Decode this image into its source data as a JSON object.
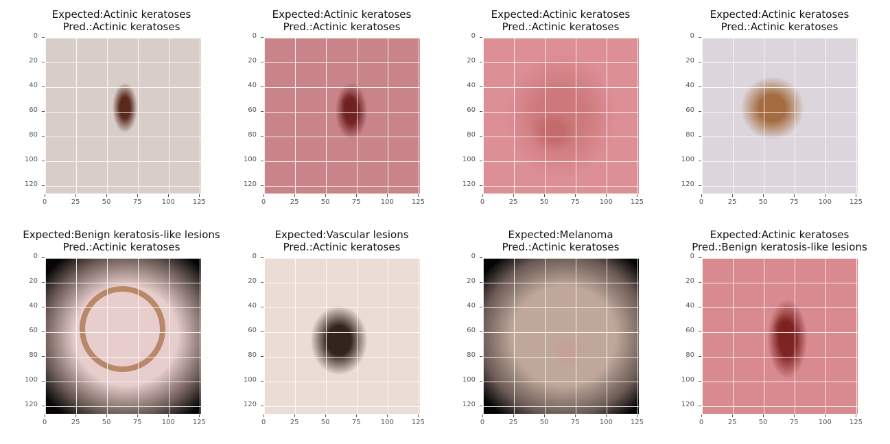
{
  "figure": {
    "panels": [
      {
        "expected_line": "Expected:Actinic keratoses",
        "pred_line": "Pred.:Actinic keratoses",
        "skin": "#d9cdc8",
        "lesion": "#5a2a1c",
        "variant": "a"
      },
      {
        "expected_line": "Expected:Actinic keratoses",
        "pred_line": "Pred.:Actinic keratoses",
        "skin": "#c9848a",
        "lesion": "#6e1e1c",
        "variant": "b"
      },
      {
        "expected_line": "Expected:Actinic keratoses",
        "pred_line": "Pred.:Actinic keratoses",
        "skin": "#dd8f96",
        "lesion": "#b0504a",
        "variant": "c"
      },
      {
        "expected_line": "Expected:Actinic keratoses",
        "pred_line": "Pred.:Actinic keratoses",
        "skin": "#ddd5dc",
        "lesion": "#9a5a26",
        "variant": "d"
      },
      {
        "expected_line": "Expected:Benign keratosis-like lesions",
        "pred_line": "Pred.:Actinic keratoses",
        "skin": "#e7cdcb",
        "lesion": "#9b5a26",
        "variant": "e"
      },
      {
        "expected_line": "Expected:Vascular lesions",
        "pred_line": "Pred.:Actinic keratoses",
        "skin": "#ecdcd6",
        "lesion": "#2a1a14",
        "variant": "f"
      },
      {
        "expected_line": "Expected:Melanoma",
        "pred_line": "Pred.:Actinic keratoses",
        "skin": "#bfa89a",
        "lesion": "#c99a96",
        "variant": "g"
      },
      {
        "expected_line": "Expected:Actinic keratoses",
        "pred_line": "Pred.:Benign keratosis-like lesions",
        "skin": "#d98a8e",
        "lesion": "#7a1e1e",
        "variant": "h"
      }
    ],
    "x_ticks": [
      "0",
      "25",
      "50",
      "75",
      "100",
      "125"
    ],
    "y_ticks": [
      "0",
      "20",
      "40",
      "60",
      "80",
      "100",
      "120"
    ]
  }
}
